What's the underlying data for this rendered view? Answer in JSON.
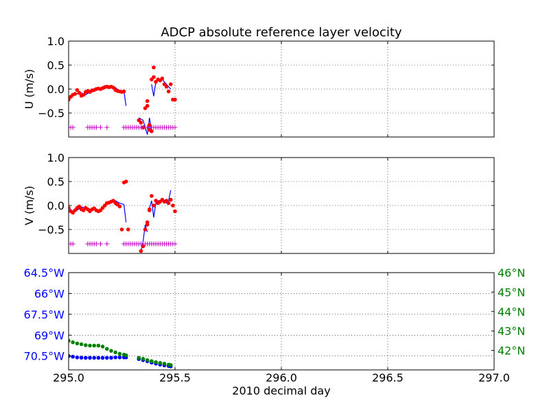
{
  "figure": {
    "title": "ADCP absolute reference layer velocity"
  },
  "colors": {
    "u_line": "#0000ff",
    "points": "#ff0000",
    "flags": "#bf00bf",
    "lon": "#0000ff",
    "lat": "#008000",
    "axis": "#000000"
  },
  "chart_data": [
    {
      "type": "line+scatter",
      "panel": "U",
      "ylabel": "U (m/s)",
      "xlim": [
        295.0,
        297.0
      ],
      "ylim": [
        -1.0,
        1.0
      ],
      "yticks": [
        1.0,
        0.5,
        0.0,
        -0.5
      ],
      "ytick_labels": [
        "1.0",
        "0.5",
        "0.0",
        "−0.5"
      ],
      "xticks": [
        295.0,
        295.5,
        296.0,
        296.5,
        297.0
      ],
      "grid": true,
      "series": [
        {
          "kind": "line",
          "color": "blue",
          "x": [
            295.0,
            295.02,
            295.04,
            295.06,
            295.08,
            295.1,
            295.12,
            295.14,
            295.16,
            295.18,
            295.2,
            295.22,
            295.24,
            295.26,
            295.27
          ],
          "y": [
            -0.22,
            -0.14,
            -0.1,
            -0.08,
            -0.12,
            -0.06,
            -0.04,
            -0.01,
            0.02,
            0.04,
            0.05,
            0.03,
            -0.04,
            -0.05,
            -0.35
          ]
        },
        {
          "kind": "line",
          "color": "blue",
          "x": [
            295.33,
            295.35,
            295.36,
            295.37,
            295.38,
            295.39
          ],
          "y": [
            -0.6,
            -0.65,
            -0.8,
            -0.95,
            -0.6,
            -0.88
          ]
        },
        {
          "kind": "line",
          "color": "blue",
          "x": [
            295.39,
            295.4,
            295.41,
            295.42,
            295.43,
            295.44,
            295.45,
            295.46,
            295.47,
            295.48
          ],
          "y": [
            0.1,
            -0.15,
            0.15,
            0.2,
            0.18,
            0.2,
            0.15,
            0.1,
            0.05,
            0.0
          ]
        },
        {
          "kind": "points",
          "color": "red",
          "x": [
            295.0,
            295.01,
            295.02,
            295.03,
            295.04,
            295.05,
            295.06,
            295.07,
            295.08,
            295.09,
            295.1,
            295.11,
            295.12,
            295.13,
            295.14,
            295.15,
            295.16,
            295.17,
            295.18,
            295.19,
            295.2,
            295.21,
            295.22,
            295.23,
            295.24,
            295.25,
            295.26,
            295.33,
            295.34,
            295.35,
            295.36,
            295.37,
            295.37,
            295.38,
            295.38,
            295.39,
            295.39,
            295.4,
            295.4,
            295.41,
            295.42,
            295.43,
            295.44,
            295.45,
            295.46,
            295.47,
            295.48,
            295.49,
            295.5
          ],
          "y": [
            -0.22,
            -0.16,
            -0.12,
            -0.1,
            -0.02,
            -0.08,
            -0.14,
            -0.12,
            -0.06,
            -0.04,
            -0.06,
            -0.03,
            -0.02,
            0.0,
            0.01,
            0.0,
            0.02,
            0.04,
            0.05,
            0.04,
            0.05,
            0.03,
            -0.02,
            -0.04,
            -0.05,
            -0.06,
            -0.05,
            -0.65,
            -0.7,
            -0.8,
            -0.4,
            -0.35,
            -0.25,
            -0.85,
            -0.75,
            -0.88,
            0.2,
            0.25,
            0.45,
            0.15,
            0.2,
            0.18,
            0.22,
            0.1,
            0.05,
            -0.05,
            0.1,
            -0.22,
            -0.22
          ]
        },
        {
          "kind": "flags",
          "color": "magenta",
          "marker": "+",
          "y": -0.8,
          "x": [
            295.01,
            295.02,
            295.09,
            295.1,
            295.11,
            295.12,
            295.13,
            295.15,
            295.18,
            295.26,
            295.27,
            295.28,
            295.29,
            295.3,
            295.31,
            295.32,
            295.33,
            295.34,
            295.35,
            295.36,
            295.37,
            295.38,
            295.39,
            295.4,
            295.41,
            295.42,
            295.43,
            295.44,
            295.45,
            295.46,
            295.47,
            295.48,
            295.49,
            295.5
          ]
        }
      ]
    },
    {
      "type": "line+scatter",
      "panel": "V",
      "ylabel": "V (m/s)",
      "xlim": [
        295.0,
        297.0
      ],
      "ylim": [
        -1.0,
        1.0
      ],
      "yticks": [
        1.0,
        0.5,
        0.0,
        -0.5
      ],
      "ytick_labels": [
        "1.0",
        "0.5",
        "0.0",
        "−0.5"
      ],
      "xticks": [
        295.0,
        295.5,
        296.0,
        296.5,
        297.0
      ],
      "grid": true,
      "series": [
        {
          "kind": "line",
          "color": "blue",
          "x": [
            295.0,
            295.02,
            295.04,
            295.06,
            295.08,
            295.1,
            295.12,
            295.14,
            295.16,
            295.18,
            295.2,
            295.22,
            295.24,
            295.26,
            295.27
          ],
          "y": [
            -0.05,
            -0.12,
            -0.1,
            -0.03,
            -0.06,
            -0.08,
            -0.08,
            -0.1,
            -0.05,
            0.05,
            0.08,
            0.1,
            0.05,
            0.02,
            -0.35
          ]
        },
        {
          "kind": "line",
          "color": "blue",
          "x": [
            295.34,
            295.35,
            295.36,
            295.37
          ],
          "y": [
            -0.95,
            -0.75,
            -0.4,
            -0.55
          ]
        },
        {
          "kind": "line",
          "color": "blue",
          "x": [
            295.38,
            295.39,
            295.4,
            295.41,
            295.42,
            295.43,
            295.44,
            295.45,
            295.46,
            295.47,
            295.48
          ],
          "y": [
            -0.05,
            0.1,
            -0.25,
            0.05,
            0.1,
            0.08,
            0.1,
            0.08,
            0.05,
            0.1,
            0.32
          ]
        },
        {
          "kind": "points",
          "color": "red",
          "x": [
            295.0,
            295.01,
            295.02,
            295.03,
            295.04,
            295.05,
            295.06,
            295.07,
            295.08,
            295.09,
            295.1,
            295.11,
            295.12,
            295.13,
            295.14,
            295.15,
            295.16,
            295.17,
            295.18,
            295.19,
            295.2,
            295.21,
            295.22,
            295.23,
            295.24,
            295.25,
            295.26,
            295.27,
            295.28,
            295.34,
            295.35,
            295.36,
            295.37,
            295.37,
            295.38,
            295.38,
            295.39,
            295.4,
            295.41,
            295.42,
            295.43,
            295.44,
            295.45,
            295.46,
            295.47,
            295.48,
            295.49,
            295.5
          ],
          "y": [
            -0.05,
            -0.12,
            -0.15,
            -0.1,
            -0.05,
            -0.02,
            -0.08,
            -0.1,
            -0.05,
            -0.08,
            -0.12,
            -0.08,
            -0.06,
            -0.1,
            -0.12,
            -0.1,
            -0.05,
            0.0,
            0.05,
            0.06,
            0.08,
            0.1,
            0.05,
            0.02,
            -0.02,
            -0.5,
            0.48,
            0.5,
            -0.5,
            -0.95,
            -0.85,
            -0.5,
            -0.35,
            -0.4,
            -0.08,
            -0.1,
            0.2,
            0.0,
            0.1,
            0.05,
            0.08,
            0.12,
            0.08,
            0.1,
            0.05,
            0.12,
            0.0,
            -0.12
          ]
        },
        {
          "kind": "flags",
          "color": "magenta",
          "marker": "+",
          "y": -0.8,
          "x": [
            295.01,
            295.02,
            295.09,
            295.1,
            295.11,
            295.12,
            295.13,
            295.15,
            295.18,
            295.26,
            295.27,
            295.28,
            295.29,
            295.3,
            295.31,
            295.32,
            295.33,
            295.34,
            295.35,
            295.36,
            295.37,
            295.38,
            295.39,
            295.4,
            295.41,
            295.42,
            295.43,
            295.44,
            295.45,
            295.46,
            295.47,
            295.48,
            295.49,
            295.5
          ]
        }
      ]
    },
    {
      "type": "scatter",
      "panel": "position",
      "xlabel": "2010 decimal day",
      "xlim": [
        295.0,
        297.0
      ],
      "xticks": [
        295.0,
        295.5,
        296.0,
        296.5,
        297.0
      ],
      "xtick_labels": [
        "295.0",
        "295.5",
        "296.0",
        "296.5",
        "297.0"
      ],
      "grid": true,
      "left_axis": {
        "color": "blue",
        "ylim": [
          -64.5,
          -71.5
        ],
        "yticks": [
          -64.5,
          -66.0,
          -67.5,
          -69.0,
          -70.5
        ],
        "ytick_labels": [
          "64.5°W",
          "66°W",
          "67.5°W",
          "69°W",
          "70.5°W"
        ]
      },
      "right_axis": {
        "color": "green",
        "ylim": [
          41.0,
          46.0
        ],
        "yticks": [
          46,
          45,
          44,
          43,
          42
        ],
        "ytick_labels": [
          "46°N",
          "45°N",
          "44°N",
          "43°N",
          "42°N"
        ]
      },
      "series": [
        {
          "kind": "points",
          "axis": "left",
          "color": "blue",
          "x": [
            295.0,
            295.02,
            295.04,
            295.06,
            295.08,
            295.1,
            295.12,
            295.14,
            295.16,
            295.18,
            295.2,
            295.22,
            295.24,
            295.26,
            295.27,
            295.33,
            295.35,
            295.37,
            295.39,
            295.41,
            295.43,
            295.45,
            295.47,
            295.48
          ],
          "y": [
            -70.5,
            -70.55,
            -70.6,
            -70.62,
            -70.63,
            -70.63,
            -70.63,
            -70.63,
            -70.63,
            -70.63,
            -70.63,
            -70.6,
            -70.6,
            -70.6,
            -70.6,
            -70.72,
            -70.8,
            -70.88,
            -70.97,
            -71.05,
            -71.12,
            -71.18,
            -71.22,
            -71.25
          ]
        },
        {
          "kind": "points",
          "axis": "right",
          "color": "green",
          "x": [
            295.0,
            295.02,
            295.04,
            295.06,
            295.08,
            295.1,
            295.12,
            295.14,
            295.16,
            295.18,
            295.2,
            295.22,
            295.24,
            295.26,
            295.27,
            295.33,
            295.35,
            295.37,
            295.39,
            295.41,
            295.43,
            295.45,
            295.47,
            295.48
          ],
          "y": [
            42.5,
            42.42,
            42.36,
            42.32,
            42.27,
            42.25,
            42.25,
            42.25,
            42.2,
            42.08,
            41.98,
            41.9,
            41.83,
            41.78,
            41.75,
            41.62,
            41.57,
            41.5,
            41.45,
            41.4,
            41.36,
            41.32,
            41.27,
            41.25
          ]
        }
      ]
    }
  ]
}
